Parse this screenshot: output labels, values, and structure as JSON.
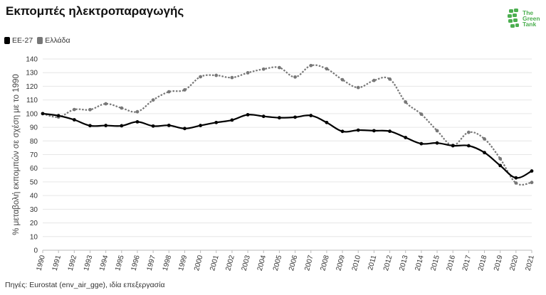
{
  "header": {
    "title": "Εκπομπές ηλεκτροπαραγωγής"
  },
  "logo": {
    "line1": "The",
    "line2": "Green",
    "line3": "Tank",
    "color": "#4caf50"
  },
  "footer": {
    "source": "Πηγές: Eurostat (env_air_gge), ιδία επεξεργασία"
  },
  "chart_data": {
    "type": "line",
    "title": "Εκπομπές ηλεκτροπαραγωγής",
    "ylabel": "% μεταβολή εκπομπών σε σχέση με το 1990",
    "xlabel": "",
    "ylim": [
      0,
      140
    ],
    "yticks": [
      0,
      10,
      20,
      30,
      40,
      50,
      60,
      70,
      80,
      90,
      100,
      110,
      120,
      130,
      140
    ],
    "grid": true,
    "legend_position": "top-left",
    "x": [
      "1990",
      "1991",
      "1992",
      "1993",
      "1994",
      "1995",
      "1996",
      "1997",
      "1998",
      "1999",
      "2000",
      "2001",
      "2002",
      "2003",
      "2004",
      "2005",
      "2006",
      "2007",
      "2008",
      "2009",
      "2010",
      "2011",
      "2012",
      "2013",
      "2014",
      "2015",
      "2016",
      "2017",
      "2018",
      "2019",
      "2020",
      "2021"
    ],
    "series": [
      {
        "name": "ΕΕ-27",
        "color": "#000000",
        "style": "solid",
        "values": [
          100,
          98.5,
          95.5,
          91.2,
          91.3,
          91.1,
          94,
          90.9,
          91.4,
          89.1,
          91.3,
          93.5,
          95.3,
          99.2,
          98,
          97,
          97.4,
          98.6,
          93.5,
          87,
          87.9,
          87.5,
          87.1,
          82.5,
          78,
          78.5,
          76.5,
          76.5,
          71.5,
          62,
          53,
          58
        ]
      },
      {
        "name": "Ελλάδα",
        "color": "#777777",
        "style": "dotted",
        "values": [
          100,
          97.5,
          103,
          102.9,
          107.2,
          104.1,
          101.4,
          110,
          116,
          117.4,
          127,
          128,
          126.4,
          129.9,
          132.6,
          133.7,
          126.8,
          135.2,
          132.8,
          124.8,
          119.1,
          124.3,
          125.3,
          108.5,
          99.6,
          87.5,
          76.8,
          86.3,
          81.5,
          67,
          49.2,
          49.6
        ]
      }
    ]
  }
}
